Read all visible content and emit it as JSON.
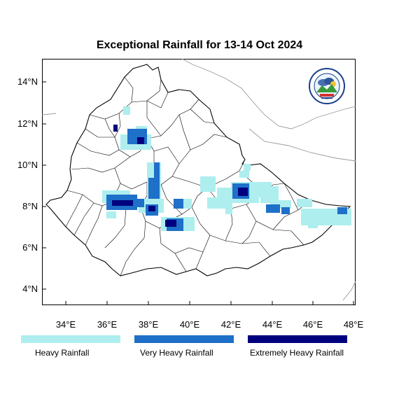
{
  "title": "Exceptional Rainfall for 13-14 Oct 2024",
  "axes": {
    "y_ticks": [
      "14°N",
      "12°N",
      "10°N",
      "8°N",
      "6°N",
      "4°N"
    ],
    "x_ticks": [
      "34°E",
      "36°E",
      "38°E",
      "40°E",
      "42°E",
      "44°E",
      "46°E",
      "48°E"
    ]
  },
  "legend": [
    {
      "label": "Heavy Rainfall",
      "color": "#aeeeee"
    },
    {
      "label": "Very Heavy Rainfall",
      "color": "#1e70c8"
    },
    {
      "label": "Extremely Heavy Rainfall",
      "color": "#00007e"
    }
  ],
  "map": {
    "region": "Ethiopia",
    "lon_range": [
      32.8,
      48.2
    ],
    "lat_range": [
      3.2,
      15.0
    ],
    "boundary_color": "#000000",
    "neighbour_color": "#9a9a9a"
  },
  "logo": {
    "icon": "meteorology-agency-logo"
  }
}
